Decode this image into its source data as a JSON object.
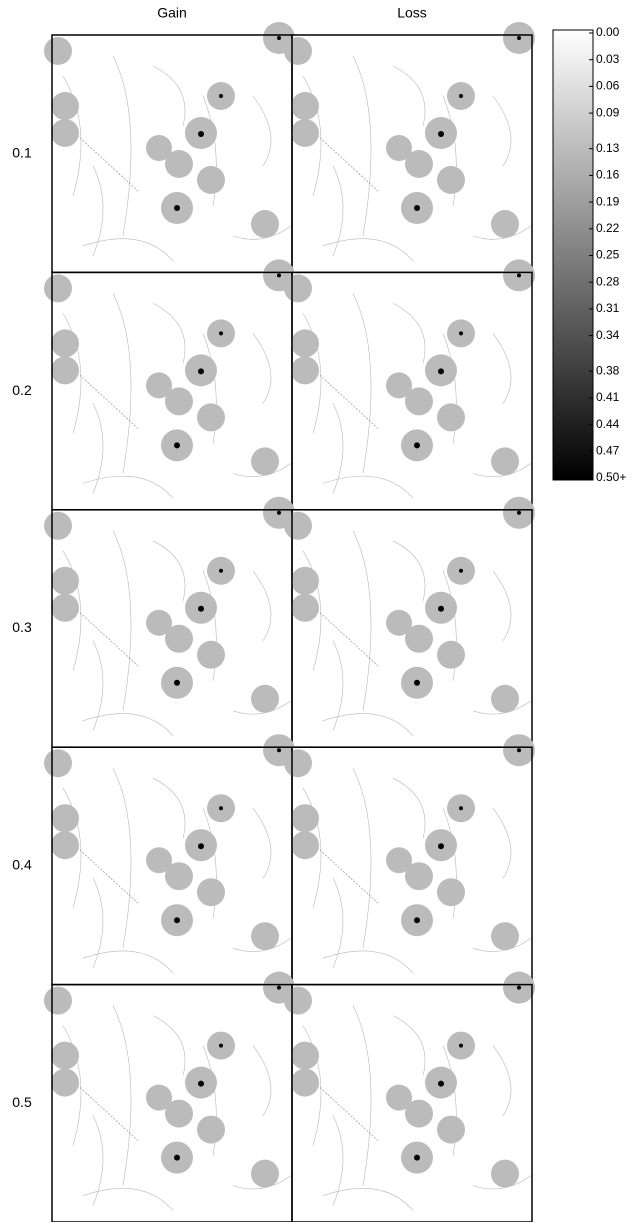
{
  "columns": [
    "Gain",
    "Loss"
  ],
  "rows": [
    "0.1",
    "0.2",
    "0.3",
    "0.4",
    "0.5"
  ],
  "colorbar": {
    "lim": [
      0,
      0.5
    ],
    "ticks": [
      {
        "value": 0,
        "label": "0.00"
      },
      0.03,
      0.06,
      0.09,
      0.13,
      0.16,
      0.19,
      0.22,
      0.25,
      0.28,
      0.31,
      0.34,
      0.38,
      0.41,
      0.44,
      0.47,
      {
        "value": 0.5,
        "label": "0.50+"
      }
    ]
  }
}
